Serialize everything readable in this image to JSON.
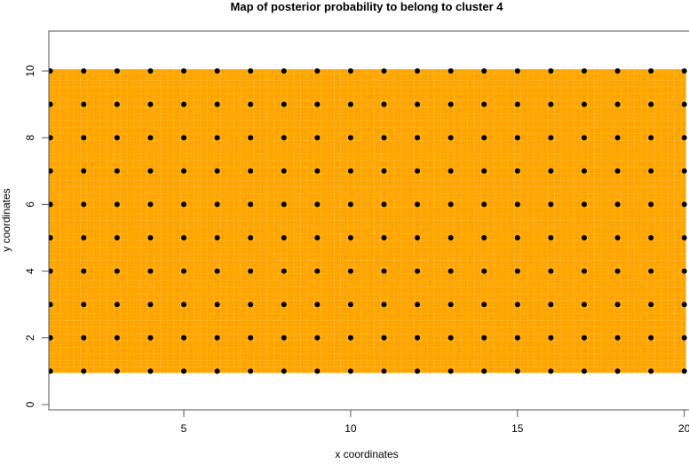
{
  "chart_data": {
    "type": "heatmap",
    "title": "Map of posterior probability to belong to cluster  4",
    "xlabel": "x coordinates",
    "ylabel": "y coordinates",
    "xlim": [
      1,
      20
    ],
    "ylim": [
      0,
      10.5
    ],
    "xticks": [
      5,
      10,
      15,
      20
    ],
    "yticks": [
      0,
      2,
      4,
      6,
      8,
      10
    ],
    "grid_x": [
      1,
      20
    ],
    "grid_y": [
      1,
      10
    ],
    "fill_color": "#FFA500",
    "point_color": "#000000",
    "points_description_free": true,
    "points": {
      "x_from": 1,
      "x_to": 20,
      "y_from": 1,
      "y_to": 10
    }
  }
}
